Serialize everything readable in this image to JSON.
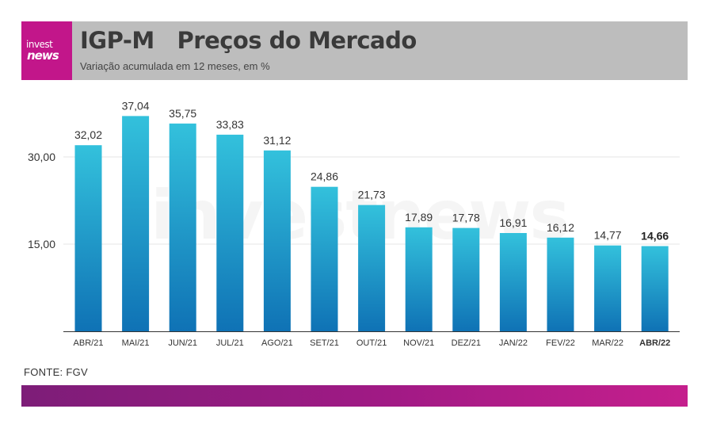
{
  "header": {
    "logo_top": "invest",
    "logo_bottom": "news",
    "title": "IGP-M   Preços do Mercado",
    "subtitle": "Variação acumulada em 12 meses, em %"
  },
  "watermark": "investnews",
  "source": "FONTE: FGV",
  "colors": {
    "brand": "#c2168a",
    "header_bg": "#bdbdbd",
    "bar_top": "#33c1dc",
    "bar_bottom": "#0f72b5",
    "footer_left": "#7d1d78",
    "footer_right": "#c51f8d"
  },
  "chart_data": {
    "type": "bar",
    "categories": [
      "ABR/21",
      "MAI/21",
      "JUN/21",
      "JUL/21",
      "AGO/21",
      "SET/21",
      "OUT/21",
      "NOV/21",
      "DEZ/21",
      "JAN/22",
      "FEV/22",
      "MAR/22",
      "ABR/22"
    ],
    "values": [
      32.02,
      37.04,
      35.75,
      33.83,
      31.12,
      24.86,
      21.73,
      17.89,
      17.78,
      16.91,
      16.12,
      14.77,
      14.66
    ],
    "value_labels": [
      "32,02",
      "37,04",
      "35,75",
      "33,83",
      "31,12",
      "24,86",
      "21,73",
      "17,89",
      "17,78",
      "16,91",
      "16,12",
      "14,77",
      "14,66"
    ],
    "highlight_index": 12,
    "yticks": [
      15,
      30
    ],
    "ytick_labels": [
      "15,00",
      "30,00"
    ],
    "ylim": [
      0,
      40
    ],
    "grid": true,
    "title": "IGP-M   Preços do Mercado",
    "subtitle": "Variação acumulada em 12 meses, em %",
    "xlabel": "",
    "ylabel": ""
  }
}
